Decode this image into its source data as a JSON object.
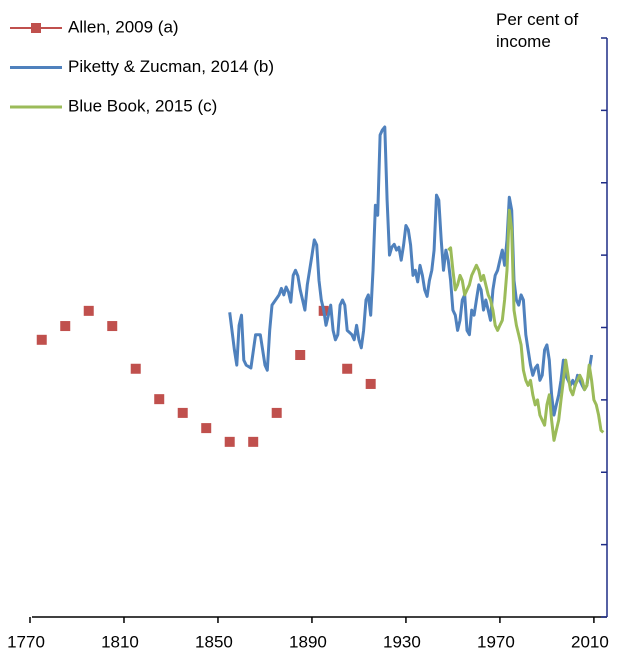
{
  "chart_data": {
    "type": "line",
    "y_axis_label": "Per cent of income",
    "xlim": [
      1770,
      2016
    ],
    "xticks": [
      1770,
      1810,
      1850,
      1890,
      1930,
      1970,
      2010
    ],
    "ylim": [
      0,
      8
    ],
    "yticks": [
      0,
      1,
      2,
      3,
      4,
      5,
      6,
      7,
      8
    ],
    "series": [
      {
        "name": "Allen, 2009 (a)",
        "color": "#c0504d",
        "style": "markers",
        "x": [
          1775,
          1785,
          1795,
          1805,
          1815,
          1825,
          1835,
          1845,
          1855,
          1865,
          1875,
          1885,
          1895,
          1905,
          1915
        ],
        "values": [
          3.83,
          4.02,
          4.23,
          4.02,
          3.43,
          3.01,
          2.82,
          2.61,
          2.42,
          2.42,
          2.82,
          3.62,
          4.23,
          3.43,
          3.22
        ]
      },
      {
        "name": "Piketty & Zucman, 2014 (b)",
        "color": "#4f81bd",
        "style": "line",
        "x": [
          1855,
          1857,
          1858,
          1859,
          1860,
          1861,
          1862,
          1864,
          1866,
          1868,
          1870,
          1871,
          1872,
          1873,
          1876,
          1877,
          1878,
          1879,
          1880,
          1881,
          1882,
          1883,
          1884,
          1885,
          1886,
          1887,
          1888,
          1889,
          1890,
          1891,
          1892,
          1893,
          1894,
          1895,
          1896,
          1897,
          1898,
          1899,
          1900,
          1901,
          1902,
          1903,
          1904,
          1905,
          1907,
          1908,
          1909,
          1910,
          1911,
          1912,
          1913,
          1914,
          1915,
          1916,
          1917,
          1918,
          1919,
          1920,
          1921,
          1922,
          1923,
          1924,
          1925,
          1926,
          1927,
          1928,
          1929,
          1930,
          1931,
          1932,
          1933,
          1934,
          1935,
          1936,
          1937,
          1938,
          1939,
          1940,
          1941,
          1942,
          1943,
          1944,
          1945,
          1946,
          1947,
          1948,
          1949,
          1950,
          1951,
          1952,
          1953,
          1954,
          1955,
          1956,
          1957,
          1958,
          1959,
          1960,
          1961,
          1962,
          1963,
          1964,
          1965,
          1966,
          1967,
          1968,
          1969,
          1970,
          1971,
          1972,
          1973,
          1974,
          1975,
          1976,
          1977,
          1978,
          1979,
          1980,
          1981,
          1982,
          1983,
          1984,
          1985,
          1986,
          1987,
          1988,
          1989,
          1990,
          1991,
          1992,
          1993,
          1994,
          1995,
          1996,
          1997,
          1998,
          1999,
          2000,
          2001,
          2002,
          2003,
          2004,
          2005,
          2006,
          2007,
          2008,
          2009
        ],
        "values": [
          4.21,
          3.69,
          3.48,
          4.03,
          4.17,
          3.55,
          3.48,
          3.44,
          3.9,
          3.9,
          3.48,
          3.41,
          3.96,
          4.31,
          4.45,
          4.54,
          4.45,
          4.56,
          4.49,
          4.35,
          4.72,
          4.79,
          4.71,
          4.52,
          4.38,
          4.24,
          4.59,
          4.79,
          5.0,
          5.21,
          5.14,
          4.65,
          4.38,
          4.24,
          4.03,
          4.17,
          4.31,
          3.96,
          3.83,
          3.9,
          4.31,
          4.38,
          4.31,
          3.96,
          3.9,
          3.83,
          4.03,
          3.83,
          3.72,
          3.96,
          4.38,
          4.45,
          4.17,
          4.79,
          5.69,
          5.55,
          6.66,
          6.73,
          6.77,
          5.76,
          5.0,
          5.11,
          5.15,
          5.07,
          5.11,
          4.93,
          5.14,
          5.41,
          5.35,
          5.14,
          4.72,
          4.79,
          4.63,
          4.86,
          4.72,
          4.52,
          4.43,
          4.65,
          4.79,
          5.07,
          5.83,
          5.76,
          5.21,
          4.79,
          5.07,
          4.93,
          4.65,
          4.24,
          4.17,
          3.96,
          4.1,
          4.38,
          4.45,
          3.96,
          3.9,
          4.24,
          4.17,
          4.38,
          4.59,
          4.52,
          4.24,
          4.38,
          4.24,
          4.1,
          4.52,
          4.72,
          4.79,
          4.93,
          5.07,
          4.86,
          5.21,
          5.8,
          5.62,
          4.65,
          4.38,
          4.31,
          4.45,
          4.38,
          3.9,
          3.69,
          3.48,
          3.34,
          3.44,
          3.48,
          3.27,
          3.34,
          3.69,
          3.76,
          3.55,
          3.07,
          2.79,
          2.93,
          3.07,
          3.27,
          3.55,
          3.34,
          3.27,
          3.2,
          3.27,
          3.19,
          3.34,
          3.27,
          3.2,
          3.14,
          3.2,
          3.41,
          3.62
        ]
      },
      {
        "name": "Blue Book, 2015 (c)",
        "color": "#9bbb59",
        "style": "line",
        "x": [
          1948,
          1949,
          1950,
          1951,
          1952,
          1953,
          1954,
          1955,
          1956,
          1957,
          1958,
          1959,
          1960,
          1961,
          1962,
          1963,
          1964,
          1965,
          1966,
          1967,
          1968,
          1969,
          1970,
          1971,
          1972,
          1973,
          1974,
          1975,
          1976,
          1977,
          1978,
          1979,
          1980,
          1981,
          1982,
          1983,
          1984,
          1985,
          1986,
          1987,
          1988,
          1989,
          1990,
          1991,
          1992,
          1993,
          1994,
          1995,
          1996,
          1997,
          1998,
          1999,
          2000,
          2001,
          2002,
          2003,
          2004,
          2005,
          2006,
          2007,
          2008,
          2009,
          2010,
          2011,
          2012,
          2013,
          2014
        ],
        "values": [
          5.07,
          5.1,
          4.79,
          4.52,
          4.59,
          4.72,
          4.65,
          4.45,
          4.52,
          4.59,
          4.72,
          4.79,
          4.86,
          4.79,
          4.65,
          4.72,
          4.59,
          4.45,
          4.38,
          4.24,
          4.03,
          3.96,
          4.03,
          4.1,
          4.38,
          4.79,
          5.62,
          5.35,
          4.24,
          4.03,
          3.9,
          3.76,
          3.41,
          3.27,
          3.2,
          3.27,
          3.07,
          2.93,
          3.0,
          2.79,
          2.72,
          2.65,
          2.93,
          3.07,
          2.72,
          2.44,
          2.58,
          2.72,
          3.0,
          3.27,
          3.55,
          3.34,
          3.14,
          3.07,
          3.2,
          3.27,
          3.34,
          3.27,
          3.14,
          3.2,
          3.48,
          3.27,
          3.0,
          2.93,
          2.79,
          2.58,
          2.55
        ]
      }
    ]
  }
}
